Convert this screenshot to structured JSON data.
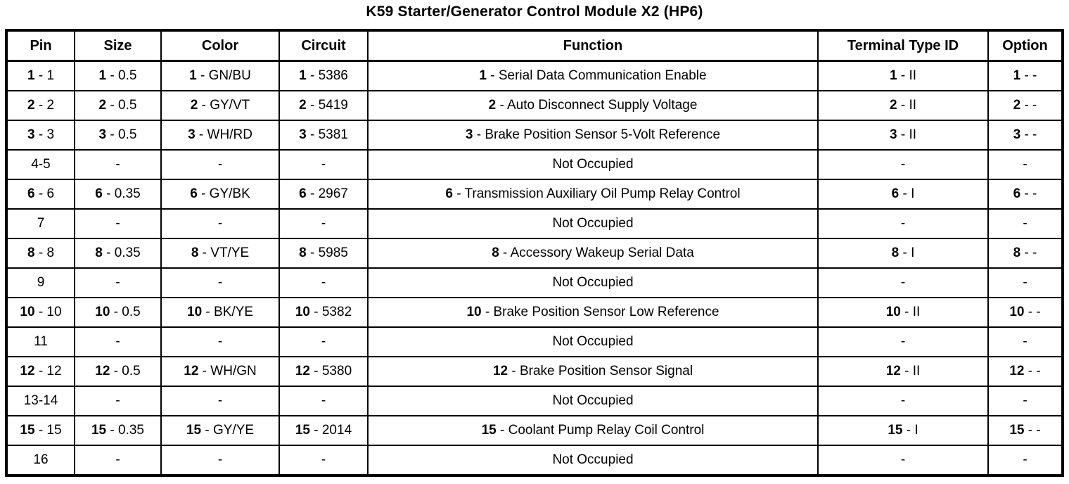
{
  "title": "K59 Starter/Generator Control Module X2 (HP6)",
  "table": {
    "columns": [
      "Pin",
      "Size",
      "Color",
      "Circuit",
      "Function",
      "Terminal Type ID",
      "Option"
    ],
    "separator": " - ",
    "rows": [
      {
        "type": "occupied",
        "num": "1",
        "cells": {
          "pin": "1",
          "size": "0.5",
          "color": "GN/BU",
          "circuit": "5386",
          "function": "Serial Data Communication Enable",
          "terminal": "II",
          "option": "-"
        }
      },
      {
        "type": "occupied",
        "num": "2",
        "cells": {
          "pin": "2",
          "size": "0.5",
          "color": "GY/VT",
          "circuit": "5419",
          "function": "Auto Disconnect Supply Voltage",
          "terminal": "II",
          "option": "-"
        }
      },
      {
        "type": "occupied",
        "num": "3",
        "cells": {
          "pin": "3",
          "size": "0.5",
          "color": "WH/RD",
          "circuit": "5381",
          "function": "Brake Position Sensor 5-Volt Reference",
          "terminal": "II",
          "option": "-"
        }
      },
      {
        "type": "empty",
        "pin": "4-5",
        "function": "Not Occupied",
        "dash": "-"
      },
      {
        "type": "occupied",
        "num": "6",
        "cells": {
          "pin": "6",
          "size": "0.35",
          "color": "GY/BK",
          "circuit": "2967",
          "function": "Transmission Auxiliary Oil Pump Relay Control",
          "terminal": "I",
          "option": "-"
        }
      },
      {
        "type": "empty",
        "pin": "7",
        "function": "Not Occupied",
        "dash": "-"
      },
      {
        "type": "occupied",
        "num": "8",
        "cells": {
          "pin": "8",
          "size": "0.35",
          "color": "VT/YE",
          "circuit": "5985",
          "function": "Accessory Wakeup Serial Data",
          "terminal": "I",
          "option": "-"
        }
      },
      {
        "type": "empty",
        "pin": "9",
        "function": "Not Occupied",
        "dash": "-"
      },
      {
        "type": "occupied",
        "num": "10",
        "cells": {
          "pin": "10",
          "size": "0.5",
          "color": "BK/YE",
          "circuit": "5382",
          "function": "Brake Position Sensor Low Reference",
          "terminal": "II",
          "option": "-"
        }
      },
      {
        "type": "empty",
        "pin": "11",
        "function": "Not Occupied",
        "dash": "-"
      },
      {
        "type": "occupied",
        "num": "12",
        "cells": {
          "pin": "12",
          "size": "0.5",
          "color": "WH/GN",
          "circuit": "5380",
          "function": "Brake Position Sensor Signal",
          "terminal": "II",
          "option": "-"
        }
      },
      {
        "type": "empty",
        "pin": "13-14",
        "function": "Not Occupied",
        "dash": "-"
      },
      {
        "type": "occupied",
        "num": "15",
        "cells": {
          "pin": "15",
          "size": "0.35",
          "color": "GY/YE",
          "circuit": "2014",
          "function": "Coolant Pump Relay Coil Control",
          "terminal": "I",
          "option": "-"
        }
      },
      {
        "type": "empty",
        "pin": "16",
        "function": "Not Occupied",
        "dash": "-"
      }
    ]
  }
}
